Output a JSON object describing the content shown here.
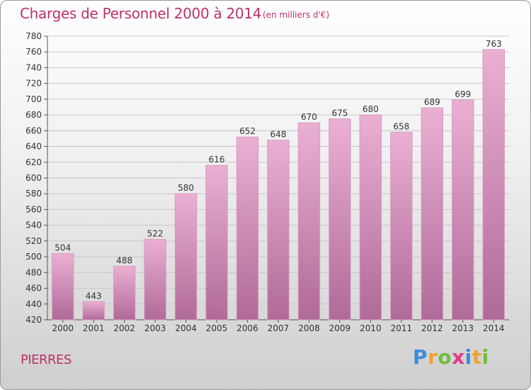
{
  "title": "Charges de Personnel 2000 à 2014",
  "subtitle": "(en milliers d'€)",
  "place": "PIERRES",
  "logo": {
    "letters": [
      {
        "char": "P",
        "color": "#3a8fd8"
      },
      {
        "char": "r",
        "color": "#f0a030"
      },
      {
        "char": "o",
        "color": "#6cbf3c"
      },
      {
        "char": "x",
        "color": "#e23a8a"
      },
      {
        "char": "i",
        "color": "#3a8fd8"
      },
      {
        "char": "t",
        "color": "#f0a030"
      },
      {
        "char": "i",
        "color": "#6cbf3c"
      }
    ]
  },
  "colors": {
    "bar_top": "#eab0d3",
    "bar_bottom": "#b06a98",
    "bar_edge": "#d89ac2",
    "grid": "#c8c8c8",
    "title": "#c0306a"
  },
  "chart_data": {
    "type": "bar",
    "categories": [
      "2000",
      "2001",
      "2002",
      "2003",
      "2004",
      "2005",
      "2006",
      "2007",
      "2008",
      "2009",
      "2010",
      "2011",
      "2012",
      "2013",
      "2014"
    ],
    "values": [
      504,
      443,
      488,
      522,
      580,
      616,
      652,
      648,
      670,
      675,
      680,
      658,
      689,
      699,
      763
    ],
    "ylim": [
      420,
      780
    ],
    "yticks": [
      420,
      440,
      460,
      480,
      500,
      520,
      540,
      560,
      580,
      600,
      620,
      640,
      660,
      680,
      700,
      720,
      740,
      760,
      780
    ],
    "grid": true,
    "legend": "none"
  }
}
